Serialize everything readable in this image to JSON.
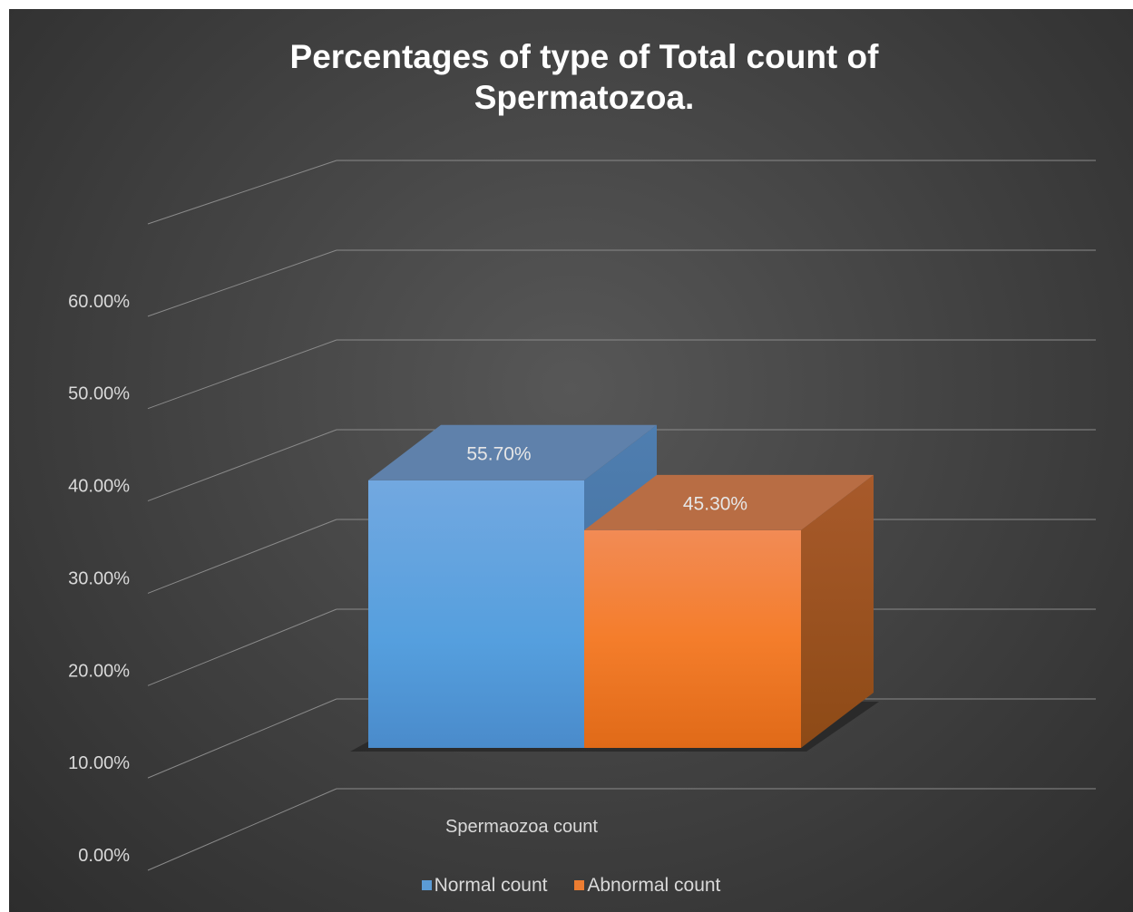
{
  "chart_data": {
    "type": "bar",
    "title_lines": [
      "Percentages of type of Total count of",
      "Spermatozoa."
    ],
    "categories": [
      "Spermaozoa count"
    ],
    "series": [
      {
        "name": "Normal count",
        "values": [
          0.557
        ],
        "value_labels": [
          "55.70%"
        ],
        "color": "#5b9bd5"
      },
      {
        "name": "Abnormal count",
        "values": [
          0.453
        ],
        "value_labels": [
          "45.30%"
        ],
        "color": "#ed7d31"
      }
    ],
    "y_ticks": [
      0,
      0.1,
      0.2,
      0.3,
      0.4,
      0.5,
      0.6
    ],
    "y_tick_labels": [
      "0.00%",
      "10.00%",
      "20.00%",
      "30.00%",
      "40.00%",
      "50.00%",
      "60.00%"
    ],
    "ylim": [
      0,
      0.7
    ],
    "grid": true,
    "legend": "bottom",
    "style": "3d-column"
  }
}
